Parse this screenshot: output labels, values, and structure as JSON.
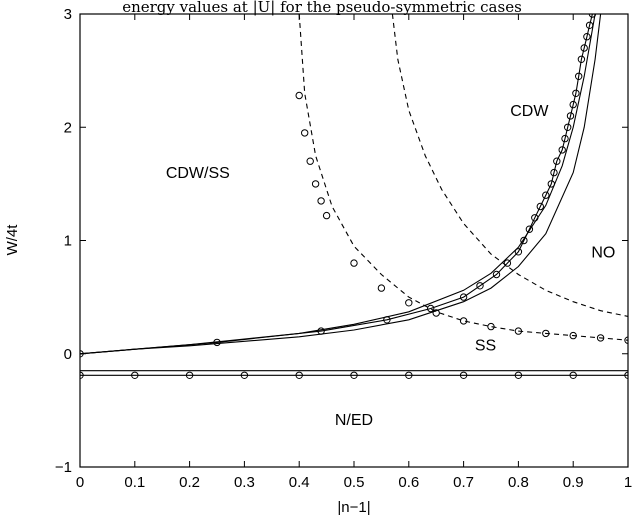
{
  "caption_fragment": "energy values at |U| for the pseudo-symmetric cases",
  "chart_data": {
    "type": "line",
    "title": "",
    "xlabel": "|n−1|",
    "ylabel": "W/4t",
    "xlim": [
      0,
      1
    ],
    "ylim": [
      -1,
      3
    ],
    "xticks": [
      0,
      0.1,
      0.2,
      0.3,
      0.4,
      0.5,
      0.6,
      0.7,
      0.8,
      0.9,
      1
    ],
    "xtick_labels": [
      "0",
      "0.1",
      "0.2",
      "0.3",
      "0.4",
      "0.5",
      "0.6",
      "0.7",
      "0.8",
      "0.9",
      "1"
    ],
    "yticks": [
      -1,
      0,
      1,
      2,
      3
    ],
    "ytick_labels": [
      "−1",
      "0",
      "1",
      "2",
      "3"
    ],
    "grid": false,
    "legend": "none",
    "region_labels": [
      {
        "text": "CDW/SS",
        "x": 0.215,
        "y": 1.55
      },
      {
        "text": "CDW",
        "x": 0.82,
        "y": 2.1
      },
      {
        "text": "NO",
        "x": 0.955,
        "y": 0.85
      },
      {
        "text": "SS",
        "x": 0.74,
        "y": 0.03
      },
      {
        "text": "N/ED",
        "x": 0.5,
        "y": -0.63
      }
    ],
    "series": [
      {
        "style": "solid",
        "x": [
          0,
          0.1,
          0.2,
          0.3,
          0.4,
          0.5,
          0.6,
          0.7,
          0.75,
          0.8,
          0.85,
          0.9,
          0.92,
          0.94,
          0.95
        ],
        "y": [
          0,
          0.04,
          0.07,
          0.11,
          0.15,
          0.21,
          0.3,
          0.46,
          0.58,
          0.77,
          1.06,
          1.6,
          2.0,
          2.6,
          3.0
        ]
      },
      {
        "style": "solid",
        "x": [
          0,
          0.1,
          0.2,
          0.3,
          0.4,
          0.5,
          0.6,
          0.7,
          0.75,
          0.8,
          0.85,
          0.88,
          0.9,
          0.92,
          0.94
        ],
        "y": [
          0,
          0.04,
          0.08,
          0.13,
          0.18,
          0.26,
          0.37,
          0.56,
          0.71,
          0.94,
          1.31,
          1.66,
          2.0,
          2.45,
          3.0
        ]
      },
      {
        "style": "solid-with-markers",
        "x": [
          0,
          0.25,
          0.44,
          0.56,
          0.64,
          0.7,
          0.73,
          0.76,
          0.78,
          0.8,
          0.81,
          0.82,
          0.83,
          0.84,
          0.85,
          0.86,
          0.865,
          0.87,
          0.88,
          0.885,
          0.89,
          0.895,
          0.9,
          0.905,
          0.91,
          0.915,
          0.92,
          0.925,
          0.93,
          0.935
        ],
        "y": [
          0,
          0.1,
          0.2,
          0.3,
          0.4,
          0.5,
          0.6,
          0.7,
          0.8,
          0.9,
          1.0,
          1.1,
          1.2,
          1.3,
          1.4,
          1.5,
          1.6,
          1.7,
          1.8,
          1.9,
          2.0,
          2.1,
          2.2,
          2.3,
          2.45,
          2.6,
          2.7,
          2.8,
          2.9,
          3.0
        ]
      },
      {
        "style": "dashed",
        "x": [
          0.4,
          0.41,
          0.43,
          0.46,
          0.5,
          0.55,
          0.6,
          0.65,
          0.7,
          0.75,
          0.8,
          0.85,
          0.9,
          0.95,
          1.0
        ],
        "y": [
          3.0,
          2.3,
          1.75,
          1.3,
          0.95,
          0.7,
          0.5,
          0.37,
          0.29,
          0.24,
          0.2,
          0.18,
          0.16,
          0.14,
          0.12
        ]
      },
      {
        "style": "dashed-markers-only",
        "x": [
          0.4,
          0.41,
          0.42,
          0.43,
          0.44,
          0.45,
          0.5,
          0.55,
          0.6,
          0.65,
          0.7,
          0.75,
          0.8,
          0.85,
          0.9,
          0.95,
          1.0
        ],
        "y": [
          2.28,
          1.95,
          1.7,
          1.5,
          1.35,
          1.22,
          0.8,
          0.58,
          0.45,
          0.36,
          0.29,
          0.24,
          0.2,
          0.18,
          0.16,
          0.14,
          0.12
        ]
      },
      {
        "style": "dashed",
        "x": [
          0.57,
          0.58,
          0.6,
          0.63,
          0.66,
          0.7,
          0.75,
          0.8,
          0.85,
          0.9,
          0.95,
          1.0
        ],
        "y": [
          3.0,
          2.6,
          2.15,
          1.75,
          1.45,
          1.15,
          0.88,
          0.7,
          0.56,
          0.46,
          0.38,
          0.33
        ]
      },
      {
        "style": "solid",
        "x": [
          0,
          1
        ],
        "y": [
          -0.15,
          -0.15
        ]
      },
      {
        "style": "solid-with-markers",
        "x": [
          0,
          0.1,
          0.2,
          0.3,
          0.4,
          0.5,
          0.6,
          0.7,
          0.8,
          0.9,
          1.0
        ],
        "y": [
          -0.19,
          -0.19,
          -0.19,
          -0.19,
          -0.19,
          -0.19,
          -0.19,
          -0.19,
          -0.19,
          -0.19,
          -0.19
        ]
      }
    ]
  }
}
